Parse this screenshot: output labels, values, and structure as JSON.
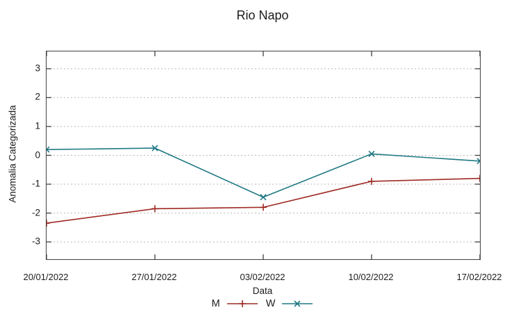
{
  "chart_data": {
    "type": "line",
    "title": "Rio Napo",
    "xlabel": "Data",
    "ylabel": "Anomalia Categorizada",
    "x": [
      "20/01/2022",
      "27/01/2022",
      "03/02/2022",
      "10/02/2022",
      "17/02/2022"
    ],
    "series": [
      {
        "name": "M",
        "marker": "plus",
        "color": "#9e2b24",
        "values": [
          -2.35,
          -1.85,
          -1.8,
          -0.9,
          -0.8
        ]
      },
      {
        "name": "W",
        "marker": "cross",
        "color": "#207984",
        "values": [
          0.2,
          0.25,
          -1.45,
          0.05,
          -0.2
        ]
      }
    ],
    "yticks": [
      3,
      2,
      1,
      0,
      -1,
      -2,
      -3
    ],
    "ylim": [
      -3.6,
      3.6
    ],
    "grid": true,
    "grid_style": "dotted",
    "legend_position": "bottom-center",
    "border_color": "#404040",
    "grid_color": "#b9b9b9",
    "background_color": "#ffffff"
  }
}
